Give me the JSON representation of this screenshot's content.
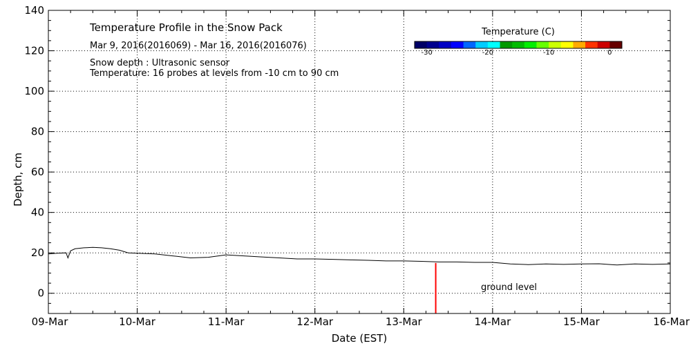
{
  "chart_data": {
    "type": "line",
    "title": "Temperature Profile in the Snow Pack",
    "subtitle": "Mar  9, 2016(2016069) - Mar 16, 2016(2016076)",
    "notes": [
      "Snow depth : Ultrasonic sensor",
      "Temperature: 16 probes at levels from -10 cm to 90 cm"
    ],
    "xlabel": "Date (EST)",
    "ylabel": "Depth, cm",
    "x_tick_labels": [
      "09-Mar",
      "10-Mar",
      "11-Mar",
      "12-Mar",
      "13-Mar",
      "14-Mar",
      "15-Mar",
      "16-Mar"
    ],
    "y_ticks": [
      0,
      20,
      40,
      60,
      80,
      100,
      120,
      140
    ],
    "ylim": [
      -10,
      140
    ],
    "xlim_days": [
      0,
      7
    ],
    "grid": true,
    "colorbar": {
      "title": "Temperature (C)",
      "range": [
        -32,
        2
      ],
      "tick_values": [
        -30,
        -20,
        -10,
        0
      ],
      "tick_labels": [
        "-30",
        "-20",
        "-10",
        "0"
      ],
      "colors": [
        "#000066",
        "#00008e",
        "#0000c4",
        "#0000ff",
        "#0066ff",
        "#00ccff",
        "#00ffff",
        "#009900",
        "#00bb00",
        "#00ee00",
        "#66ff00",
        "#ccff00",
        "#ffff00",
        "#ffaa00",
        "#ff3300",
        "#cc0000",
        "#660000"
      ]
    },
    "series": [
      {
        "color": "#000000",
        "x": [
          0.0,
          0.1,
          0.2,
          0.22,
          0.25,
          0.3,
          0.4,
          0.5,
          0.6,
          0.7,
          0.8,
          0.9,
          1.0,
          1.2,
          1.4,
          1.6,
          1.8,
          2.0,
          2.2,
          2.4,
          2.6,
          2.8,
          3.0,
          3.2,
          3.4,
          3.6,
          3.8,
          4.0,
          4.2,
          4.4,
          4.6,
          4.8,
          5.0,
          5.2,
          5.4,
          5.6,
          5.8,
          6.0,
          6.2,
          6.4,
          6.6,
          6.8,
          7.0
        ],
        "y": [
          19.5,
          19.8,
          20.0,
          17.5,
          21.0,
          22.0,
          22.5,
          22.7,
          22.5,
          22.0,
          21.3,
          20.0,
          19.8,
          19.5,
          18.5,
          17.5,
          17.8,
          19.0,
          18.5,
          18.0,
          17.5,
          17.0,
          17.0,
          16.8,
          16.5,
          16.3,
          16.0,
          16.0,
          15.8,
          15.5,
          15.5,
          15.3,
          15.3,
          14.5,
          14.2,
          14.5,
          14.3,
          14.5,
          14.6,
          14.0,
          14.5,
          14.3,
          14.5
        ]
      }
    ],
    "annotations": [
      {
        "text": "ground level"
      }
    ],
    "event_marker": {
      "x": 4.36,
      "y_from": -10,
      "y_to": 15,
      "color": "#ff0000"
    }
  }
}
